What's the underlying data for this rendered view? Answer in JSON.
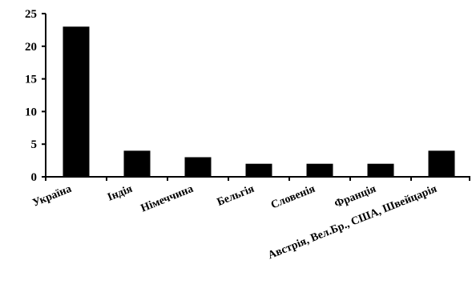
{
  "chart_data": {
    "type": "bar",
    "title": "",
    "xlabel": "",
    "ylabel": "",
    "categories": [
      "Україна",
      "Індія",
      "Німеччина",
      "Бельгія",
      "Словенія",
      "Франція",
      "Австрія, Вел.Бр., США, Швейцарія"
    ],
    "values": [
      23,
      4,
      3,
      2,
      2,
      2,
      4
    ],
    "ylim": [
      0,
      25
    ],
    "yticks": [
      0,
      5,
      10,
      15,
      20,
      25
    ],
    "grid": false,
    "bar_color": "#000000",
    "axis_color": "#000000"
  }
}
